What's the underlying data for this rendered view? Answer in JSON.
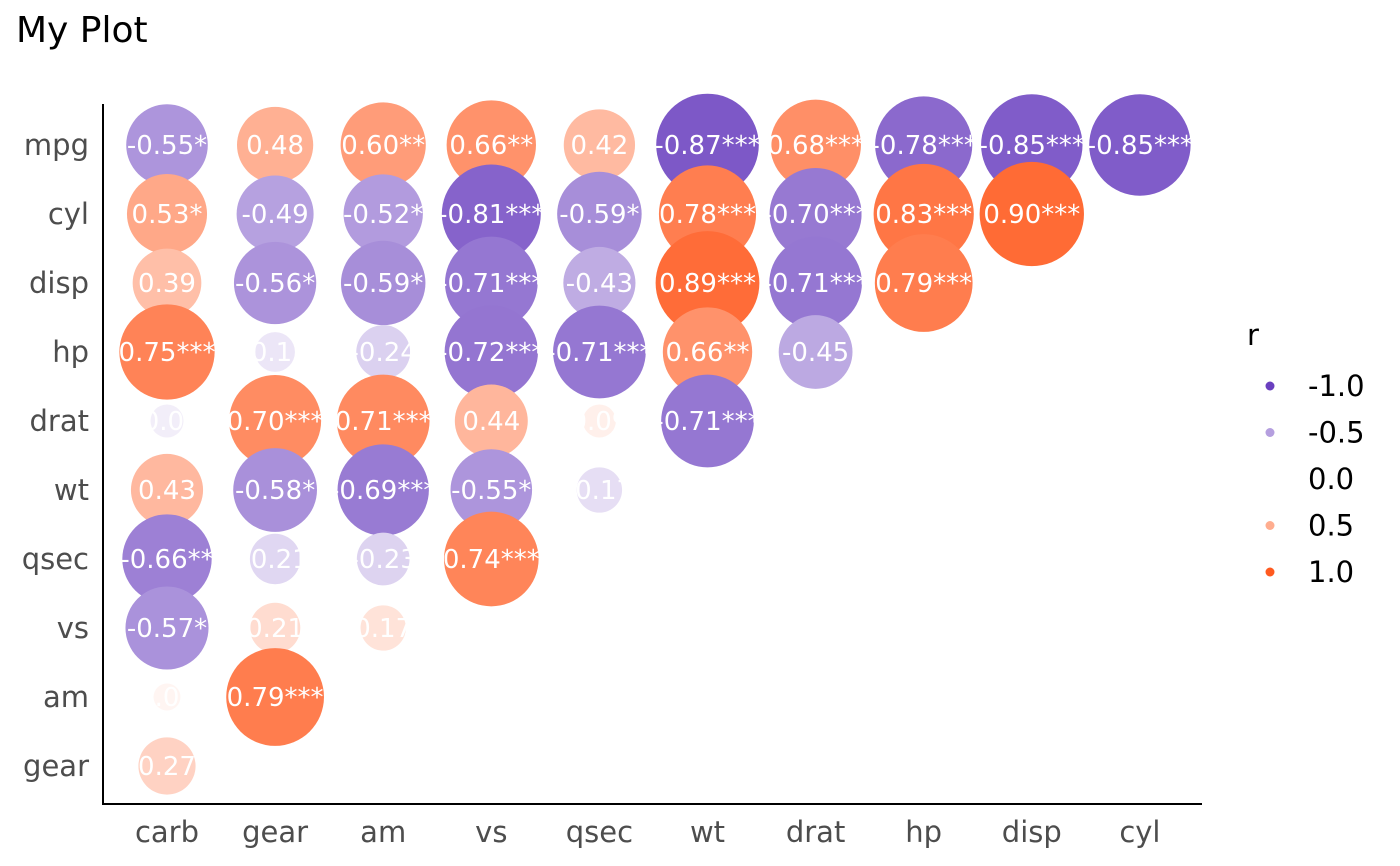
{
  "chart_data": {
    "type": "correlation-bubble",
    "title": "My Plot",
    "x_categories": [
      "carb",
      "gear",
      "am",
      "vs",
      "qsec",
      "wt",
      "drat",
      "hp",
      "disp",
      "cyl"
    ],
    "y_categories": [
      "mpg",
      "cyl",
      "disp",
      "hp",
      "drat",
      "wt",
      "qsec",
      "vs",
      "am",
      "gear"
    ],
    "cells": [
      {
        "x": "carb",
        "y": "mpg",
        "r": -0.55,
        "label": "-0.55*"
      },
      {
        "x": "gear",
        "y": "mpg",
        "r": 0.48,
        "label": "0.48"
      },
      {
        "x": "am",
        "y": "mpg",
        "r": 0.6,
        "label": "0.60**"
      },
      {
        "x": "vs",
        "y": "mpg",
        "r": 0.66,
        "label": "0.66**"
      },
      {
        "x": "qsec",
        "y": "mpg",
        "r": 0.42,
        "label": "0.42"
      },
      {
        "x": "wt",
        "y": "mpg",
        "r": -0.87,
        "label": "-0.87***"
      },
      {
        "x": "drat",
        "y": "mpg",
        "r": 0.68,
        "label": "0.68***"
      },
      {
        "x": "hp",
        "y": "mpg",
        "r": -0.78,
        "label": "-0.78***"
      },
      {
        "x": "disp",
        "y": "mpg",
        "r": -0.85,
        "label": "-0.85***"
      },
      {
        "x": "cyl",
        "y": "mpg",
        "r": -0.85,
        "label": "-0.85***"
      },
      {
        "x": "carb",
        "y": "cyl",
        "r": 0.53,
        "label": "0.53*"
      },
      {
        "x": "gear",
        "y": "cyl",
        "r": -0.49,
        "label": "-0.49"
      },
      {
        "x": "am",
        "y": "cyl",
        "r": -0.52,
        "label": "-0.52*"
      },
      {
        "x": "vs",
        "y": "cyl",
        "r": -0.81,
        "label": "-0.81***"
      },
      {
        "x": "qsec",
        "y": "cyl",
        "r": -0.59,
        "label": "-0.59*"
      },
      {
        "x": "wt",
        "y": "cyl",
        "r": 0.78,
        "label": "0.78***"
      },
      {
        "x": "drat",
        "y": "cyl",
        "r": -0.7,
        "label": "-0.70***"
      },
      {
        "x": "hp",
        "y": "cyl",
        "r": 0.83,
        "label": "0.83***"
      },
      {
        "x": "disp",
        "y": "cyl",
        "r": 0.9,
        "label": "0.90***"
      },
      {
        "x": "carb",
        "y": "disp",
        "r": 0.39,
        "label": "0.39"
      },
      {
        "x": "gear",
        "y": "disp",
        "r": -0.56,
        "label": "-0.56*"
      },
      {
        "x": "am",
        "y": "disp",
        "r": -0.59,
        "label": "-0.59*"
      },
      {
        "x": "vs",
        "y": "disp",
        "r": -0.71,
        "label": "-0.71***"
      },
      {
        "x": "qsec",
        "y": "disp",
        "r": -0.43,
        "label": "-0.43"
      },
      {
        "x": "wt",
        "y": "disp",
        "r": 0.89,
        "label": "0.89***"
      },
      {
        "x": "drat",
        "y": "disp",
        "r": -0.71,
        "label": "-0.71***"
      },
      {
        "x": "hp",
        "y": "disp",
        "r": 0.79,
        "label": "0.79***"
      },
      {
        "x": "carb",
        "y": "hp",
        "r": 0.75,
        "label": "0.75***"
      },
      {
        "x": "gear",
        "y": "hp",
        "r": -0.13,
        "label": "-0.13"
      },
      {
        "x": "am",
        "y": "hp",
        "r": -0.24,
        "label": "-0.24"
      },
      {
        "x": "vs",
        "y": "hp",
        "r": -0.72,
        "label": "-0.72***"
      },
      {
        "x": "qsec",
        "y": "hp",
        "r": -0.71,
        "label": "-0.71***"
      },
      {
        "x": "wt",
        "y": "hp",
        "r": 0.66,
        "label": "0.66**"
      },
      {
        "x": "drat",
        "y": "hp",
        "r": -0.45,
        "label": "-0.45"
      },
      {
        "x": "carb",
        "y": "drat",
        "r": -0.09,
        "label": "-0.09"
      },
      {
        "x": "gear",
        "y": "drat",
        "r": 0.7,
        "label": "0.70***"
      },
      {
        "x": "am",
        "y": "drat",
        "r": 0.71,
        "label": "0.71***"
      },
      {
        "x": "vs",
        "y": "drat",
        "r": 0.44,
        "label": "0.44"
      },
      {
        "x": "qsec",
        "y": "drat",
        "r": 0.09,
        "label": "0.09"
      },
      {
        "x": "wt",
        "y": "drat",
        "r": -0.71,
        "label": "-0.71***"
      },
      {
        "x": "carb",
        "y": "wt",
        "r": 0.43,
        "label": "0.43"
      },
      {
        "x": "gear",
        "y": "wt",
        "r": -0.58,
        "label": "-0.58*"
      },
      {
        "x": "am",
        "y": "wt",
        "r": -0.69,
        "label": "-0.69***"
      },
      {
        "x": "vs",
        "y": "wt",
        "r": -0.55,
        "label": "-0.55*"
      },
      {
        "x": "qsec",
        "y": "wt",
        "r": -0.17,
        "label": "-0.17"
      },
      {
        "x": "carb",
        "y": "qsec",
        "r": -0.66,
        "label": "-0.66**"
      },
      {
        "x": "gear",
        "y": "qsec",
        "r": -0.21,
        "label": "-0.21"
      },
      {
        "x": "am",
        "y": "qsec",
        "r": -0.23,
        "label": "-0.23"
      },
      {
        "x": "vs",
        "y": "qsec",
        "r": 0.74,
        "label": "0.74***"
      },
      {
        "x": "carb",
        "y": "vs",
        "r": -0.57,
        "label": "-0.57*"
      },
      {
        "x": "gear",
        "y": "vs",
        "r": 0.21,
        "label": "0.21"
      },
      {
        "x": "am",
        "y": "vs",
        "r": 0.17,
        "label": "0.17"
      },
      {
        "x": "carb",
        "y": "am",
        "r": 0.06,
        "label": "0.06"
      },
      {
        "x": "gear",
        "y": "am",
        "r": 0.79,
        "label": "0.79***"
      },
      {
        "x": "carb",
        "y": "gear",
        "r": 0.27,
        "label": "0.27"
      }
    ],
    "legend": {
      "title": "r",
      "position": "right",
      "entries": [
        {
          "value": -1.0,
          "label": "-1.0"
        },
        {
          "value": -0.5,
          "label": "-0.5"
        },
        {
          "value": 0.0,
          "label": "0.0"
        },
        {
          "value": 0.5,
          "label": "0.5"
        },
        {
          "value": 1.0,
          "label": "1.0"
        }
      ]
    },
    "color_scale": {
      "negative": "#6a3fbf",
      "zero": "#ffffff",
      "positive": "#ff5a1f"
    },
    "r_range": [
      -1,
      1
    ]
  }
}
